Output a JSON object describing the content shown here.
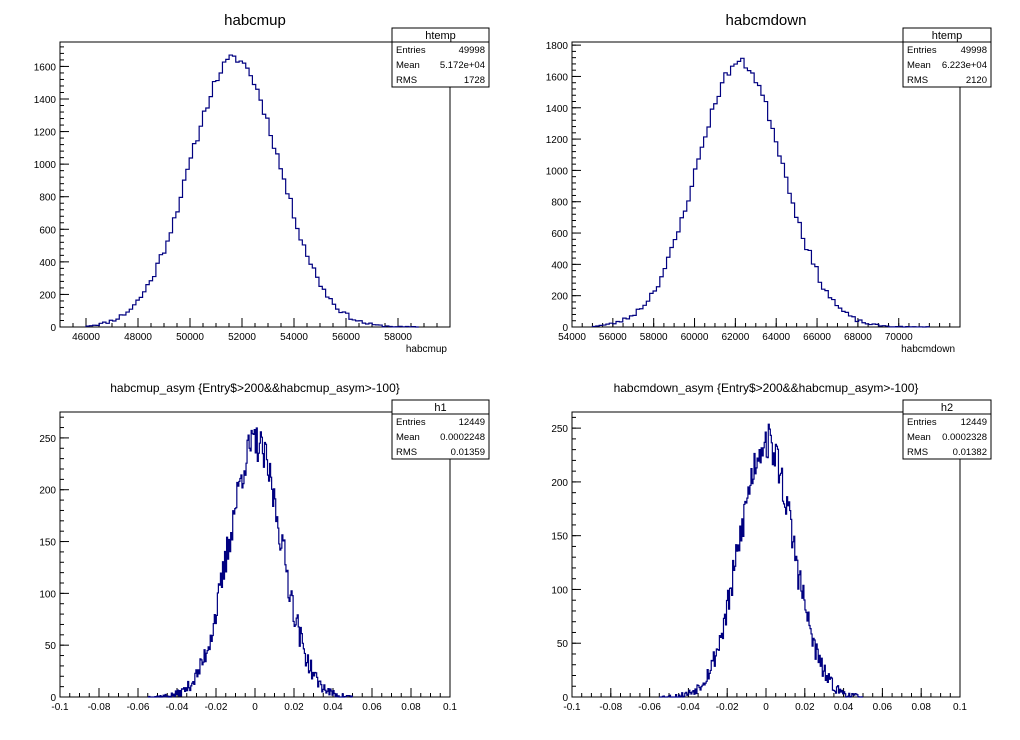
{
  "canvas": {
    "background": "#ffffff",
    "line_color": "#000080"
  },
  "chart_data": [
    {
      "type": "histogram",
      "title": "habcmup",
      "xlabel": "habcmup",
      "ylabel": "",
      "xlim": [
        45000,
        60000
      ],
      "ylim": [
        0,
        1750
      ],
      "xticks": [
        46000,
        48000,
        50000,
        52000,
        54000,
        56000,
        58000
      ],
      "xtick_labels": [
        "46000",
        "48000",
        "50000",
        "52000",
        "54000",
        "56000",
        "58000"
      ],
      "yticks": [
        0,
        200,
        400,
        600,
        800,
        1000,
        1200,
        1400,
        1600
      ],
      "ytick_labels": [
        "0",
        "200",
        "400",
        "600",
        "800",
        "1000",
        "1200",
        "1400",
        "1600"
      ],
      "stats": {
        "name": "htemp",
        "rows": [
          [
            "Entries",
            "49998"
          ],
          [
            "Mean",
            "5.172e+04"
          ],
          [
            "RMS",
            "1728"
          ]
        ]
      },
      "dist": {
        "mean": 51720,
        "sigma": 1728,
        "peak": 1650,
        "start": 46000,
        "end": 58800,
        "nbins": 100,
        "noise": 30,
        "seed": 11
      }
    },
    {
      "type": "histogram",
      "title": "habcmdown",
      "xlabel": "habcmdown",
      "ylabel": "",
      "xlim": [
        54000,
        73000
      ],
      "ylim": [
        0,
        1820
      ],
      "xticks": [
        54000,
        56000,
        58000,
        60000,
        62000,
        64000,
        66000,
        68000,
        70000
      ],
      "xtick_labels": [
        "54000",
        "56000",
        "58000",
        "60000",
        "62000",
        "64000",
        "66000",
        "68000",
        "70000"
      ],
      "yticks": [
        0,
        200,
        400,
        600,
        800,
        1000,
        1200,
        1400,
        1600,
        1800
      ],
      "ytick_labels": [
        "0",
        "200",
        "400",
        "600",
        "800",
        "1000",
        "1200",
        "1400",
        "1600",
        "1800"
      ],
      "stats": {
        "name": "htemp",
        "rows": [
          [
            "Entries",
            "49998"
          ],
          [
            "Mean",
            "6.223e+04"
          ],
          [
            "RMS",
            "2120"
          ]
        ]
      },
      "dist": {
        "mean": 62230,
        "sigma": 2120,
        "peak": 1690,
        "start": 55000,
        "end": 71500,
        "nbins": 100,
        "noise": 30,
        "seed": 23
      }
    },
    {
      "type": "histogram",
      "title": "habcmup_asym {Entry$>200&&habcmup_asym>-100}",
      "xlabel": "",
      "ylabel": "",
      "xlim": [
        -0.1,
        0.1
      ],
      "ylim": [
        0,
        275
      ],
      "xticks": [
        -0.1,
        -0.08,
        -0.06,
        -0.04,
        -0.02,
        0,
        0.02,
        0.04,
        0.06,
        0.08,
        0.1
      ],
      "xtick_labels": [
        "-0.1",
        "-0.08",
        "-0.06",
        "-0.04",
        "-0.02",
        "0",
        "0.02",
        "0.04",
        "0.06",
        "0.08",
        "0.1"
      ],
      "yticks": [
        0,
        50,
        100,
        150,
        200,
        250
      ],
      "ytick_labels": [
        "0",
        "50",
        "100",
        "150",
        "200",
        "250"
      ],
      "stats": {
        "name": "h1",
        "rows": [
          [
            "Entries",
            "12449"
          ],
          [
            "Mean",
            "0.0002248"
          ],
          [
            "RMS",
            "0.01359"
          ]
        ]
      },
      "dist": {
        "mean": 0.0002,
        "sigma": 0.01359,
        "peak": 245,
        "start": -0.055,
        "end": 0.05,
        "nbins": 200,
        "noise": 18,
        "seed": 37
      }
    },
    {
      "type": "histogram",
      "title": "habcmdown_asym {Entry$>200&&habcmup_asym>-100}",
      "xlabel": "",
      "ylabel": "",
      "xlim": [
        -0.1,
        0.1
      ],
      "ylim": [
        0,
        265
      ],
      "xticks": [
        -0.1,
        -0.08,
        -0.06,
        -0.04,
        -0.02,
        0,
        0.02,
        0.04,
        0.06,
        0.08,
        0.1
      ],
      "xtick_labels": [
        "-0.1",
        "-0.08",
        "-0.06",
        "-0.04",
        "-0.02",
        "0",
        "0.02",
        "0.04",
        "0.06",
        "0.08",
        "0.1"
      ],
      "yticks": [
        0,
        50,
        100,
        150,
        200,
        250
      ],
      "ytick_labels": [
        "0",
        "50",
        "100",
        "150",
        "200",
        "250"
      ],
      "stats": {
        "name": "h2",
        "rows": [
          [
            "Entries",
            "12449"
          ],
          [
            "Mean",
            "0.0002328"
          ],
          [
            "RMS",
            "0.01382"
          ]
        ]
      },
      "dist": {
        "mean": 0.0002,
        "sigma": 0.01382,
        "peak": 238,
        "start": -0.055,
        "end": 0.05,
        "nbins": 200,
        "noise": 18,
        "seed": 53
      }
    }
  ]
}
